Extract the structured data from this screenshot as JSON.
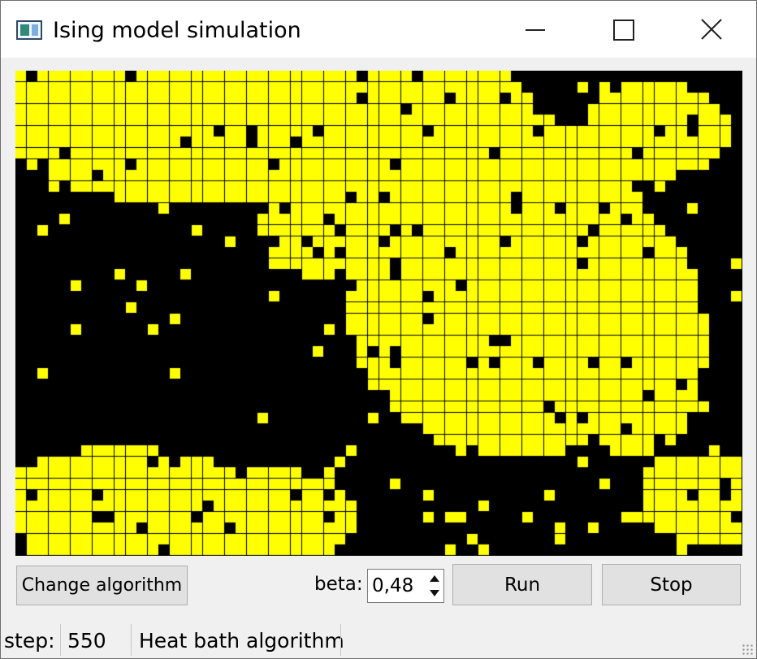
{
  "window": {
    "title": "Ising model simulation"
  },
  "lattice": {
    "columns": 66,
    "rows": 44,
    "up_color": "#ffff00",
    "down_color": "#000000"
  },
  "controls": {
    "change_algorithm_label": "Change algorithm",
    "beta_label": "beta:",
    "beta_value": "0,48",
    "run_label": "Run",
    "stop_label": "Stop"
  },
  "status": {
    "step_label": "step:",
    "step_value": "550",
    "algorithm": "Heat bath algorithm"
  }
}
